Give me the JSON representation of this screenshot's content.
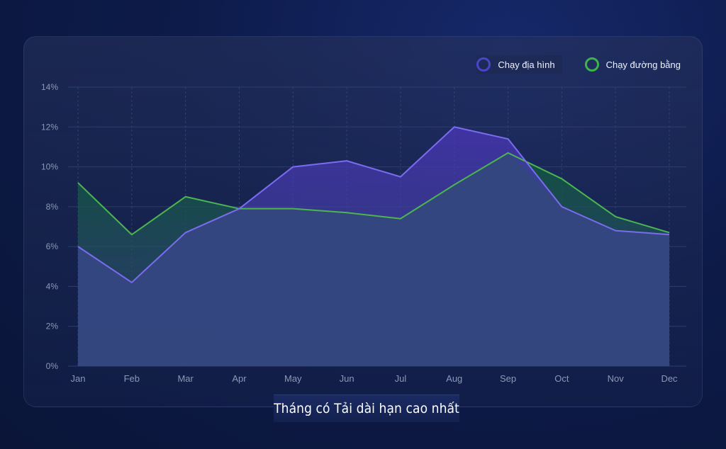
{
  "colors": {
    "series_trail": "#7a6cf0",
    "series_road": "#5fbf5a",
    "grid": "#3a4a7a",
    "tick": "#8c97b8"
  },
  "legend": {
    "trail_label": "Chạy địa hình",
    "road_label": "Chạy đường bằng"
  },
  "xaxis_title": "Tháng có Tải dài hạn cao nhất",
  "chart_data": {
    "type": "area",
    "categories": [
      "Jan",
      "Feb",
      "Mar",
      "Apr",
      "May",
      "Jun",
      "Jul",
      "Aug",
      "Sep",
      "Oct",
      "Nov",
      "Dec"
    ],
    "ylim": [
      0,
      14
    ],
    "yticks": [
      "0%",
      "2%",
      "4%",
      "6%",
      "8%",
      "10%",
      "12%",
      "14%"
    ],
    "xlabel": "Tháng có Tải dài hạn cao nhất",
    "ylabel": "",
    "grid": true,
    "legend_position": "top-right",
    "series": [
      {
        "name": "Chạy địa hình",
        "values": [
          6.0,
          4.2,
          6.7,
          7.9,
          10.0,
          10.3,
          9.5,
          12.0,
          11.4,
          8.0,
          6.8,
          6.6
        ]
      },
      {
        "name": "Chạy đường bằng",
        "values": [
          9.2,
          6.6,
          8.5,
          7.9,
          7.9,
          7.7,
          7.4,
          9.1,
          10.7,
          9.4,
          7.5,
          6.7
        ]
      }
    ]
  }
}
